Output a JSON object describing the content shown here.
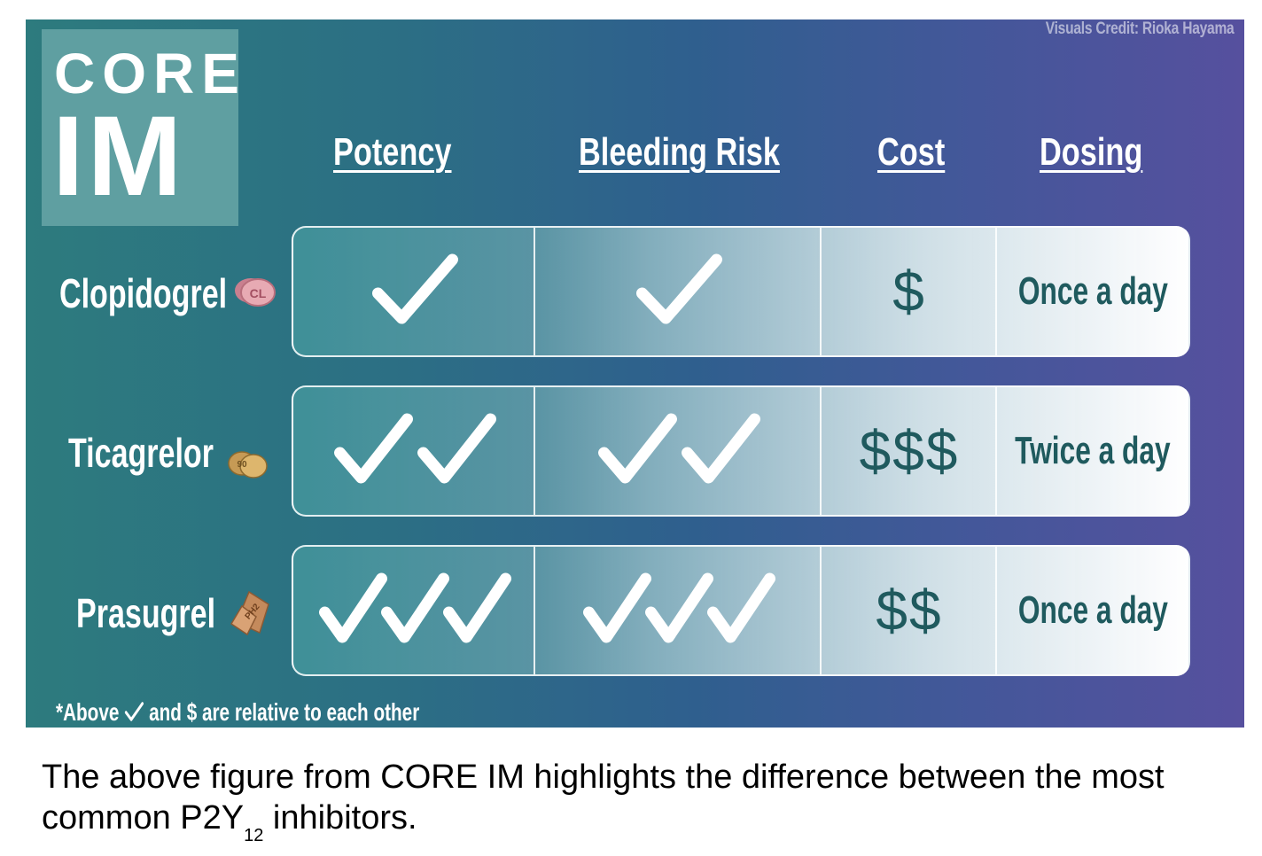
{
  "credit": "Visuals Credit: Rioka Hayama",
  "logo": {
    "line1": "CORE",
    "line2": "IM"
  },
  "columns": [
    "Potency",
    "Bleeding Risk",
    "Cost",
    "Dosing"
  ],
  "rows": [
    {
      "drug": "Clopidogrel",
      "pill_label": "CL",
      "potency": 1,
      "bleeding_risk": 1,
      "cost": "$",
      "dosing": "Once a day"
    },
    {
      "drug": "Ticagrelor",
      "pill_label": "90",
      "potency": 2,
      "bleeding_risk": 2,
      "cost": "$$$",
      "dosing": "Twice a day"
    },
    {
      "drug": "Prasugrel",
      "pill_label": "PH2",
      "potency": 3,
      "bleeding_risk": 3,
      "cost": "$$",
      "dosing": "Once a day"
    }
  ],
  "footnote": {
    "before": "*Above ",
    "after": " and $ are relative to each other"
  },
  "caption": {
    "before": "The above figure from CORE IM highlights the difference between the most common P2Y",
    "sub": "12",
    "after": " inhibitors."
  },
  "colors": {
    "teal": "#2d7b7e",
    "purple": "#56509e",
    "text_dark": "#1f5a5e"
  }
}
